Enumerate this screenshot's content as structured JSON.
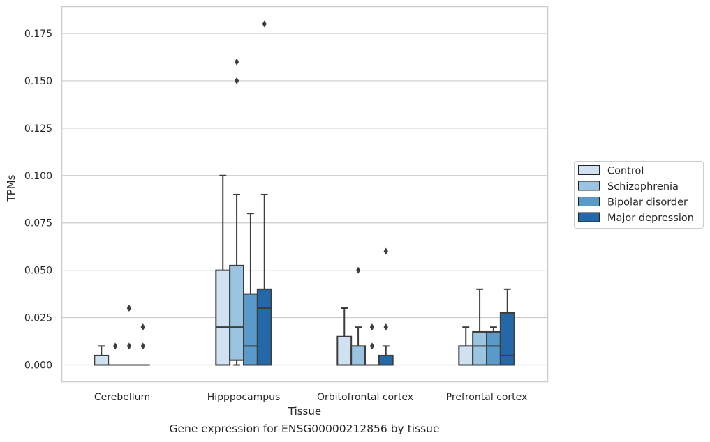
{
  "chart_data": {
    "type": "box",
    "title": "",
    "xlabel": "Tissue",
    "ylabel": "TPMs",
    "caption": "Gene expression for ENSG00000212856 by tissue",
    "ylim": [
      -0.009,
      0.181
    ],
    "yticks": [
      "0.000",
      "0.025",
      "0.050",
      "0.075",
      "0.100",
      "0.125",
      "0.150",
      "0.175"
    ],
    "grid": "horizontal",
    "legend_position": "right",
    "categories": [
      "Cerebellum",
      "Hipppocampus",
      "Orbitofrontal cortex",
      "Prefrontal cortex"
    ],
    "series": [
      {
        "name": "Control",
        "color": "#d0e1f1",
        "boxes": [
          {
            "whislo": 0,
            "q1": 0,
            "med": 0,
            "q3": 0.005,
            "whishi": 0.01,
            "fliers": []
          },
          {
            "whislo": 0,
            "q1": 0,
            "med": 0.02,
            "q3": 0.05,
            "whishi": 0.1,
            "fliers": []
          },
          {
            "whislo": 0,
            "q1": 0,
            "med": 0,
            "q3": 0.015,
            "whishi": 0.03,
            "fliers": []
          },
          {
            "whislo": 0,
            "q1": 0,
            "med": 0,
            "q3": 0.01,
            "whishi": 0.02,
            "fliers": []
          }
        ]
      },
      {
        "name": "Schizophrenia",
        "color": "#9ac4df",
        "boxes": [
          {
            "whislo": 0,
            "q1": 0,
            "med": 0,
            "q3": 0,
            "whishi": 0,
            "fliers": [
              0.01
            ]
          },
          {
            "whislo": 0,
            "q1": 0.0025,
            "med": 0.02,
            "q3": 0.0525,
            "whishi": 0.09,
            "fliers": [
              0.15,
              0.16
            ]
          },
          {
            "whislo": 0,
            "q1": 0,
            "med": 0,
            "q3": 0.01,
            "whishi": 0.02,
            "fliers": [
              0.05
            ]
          },
          {
            "whislo": 0,
            "q1": 0,
            "med": 0.01,
            "q3": 0.0175,
            "whishi": 0.04,
            "fliers": []
          }
        ]
      },
      {
        "name": "Bipolar disorder",
        "color": "#5a9ac8",
        "boxes": [
          {
            "whislo": 0,
            "q1": 0,
            "med": 0,
            "q3": 0,
            "whishi": 0,
            "fliers": [
              0.01,
              0.03
            ]
          },
          {
            "whislo": 0,
            "q1": 0,
            "med": 0.01,
            "q3": 0.0375,
            "whishi": 0.08,
            "fliers": []
          },
          {
            "whislo": 0,
            "q1": 0,
            "med": 0,
            "q3": 0,
            "whishi": 0,
            "fliers": [
              0.01,
              0.02
            ]
          },
          {
            "whislo": 0,
            "q1": 0,
            "med": 0.01,
            "q3": 0.0175,
            "whishi": 0.02,
            "fliers": []
          }
        ]
      },
      {
        "name": "Major depression",
        "color": "#2468a8",
        "boxes": [
          {
            "whislo": 0,
            "q1": 0,
            "med": 0,
            "q3": 0,
            "whishi": 0,
            "fliers": [
              0.01,
              0.02
            ]
          },
          {
            "whislo": 0,
            "q1": 0,
            "med": 0.03,
            "q3": 0.04,
            "whishi": 0.09,
            "fliers": [
              0.18
            ]
          },
          {
            "whislo": 0,
            "q1": 0,
            "med": 0,
            "q3": 0.005,
            "whishi": 0.01,
            "fliers": [
              0.02,
              0.06
            ]
          },
          {
            "whislo": 0,
            "q1": 0,
            "med": 0.005,
            "q3": 0.0275,
            "whishi": 0.04,
            "fliers": []
          }
        ]
      }
    ]
  }
}
